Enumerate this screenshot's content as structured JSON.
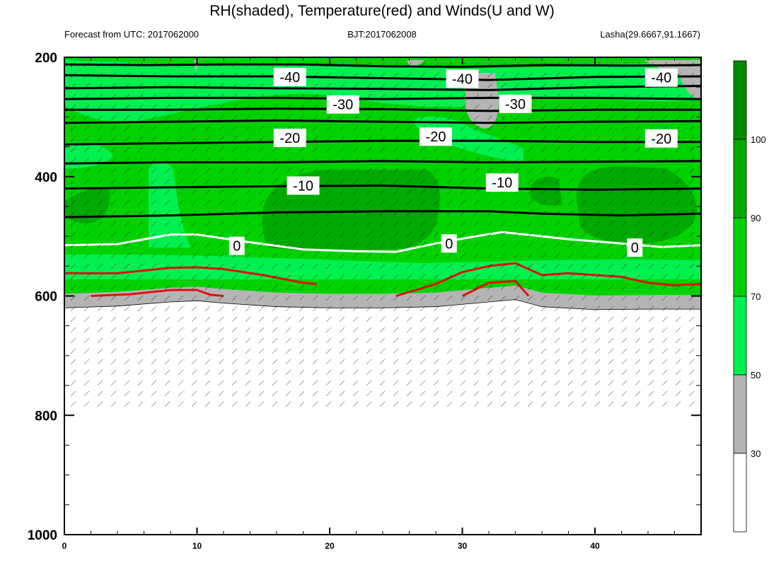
{
  "title": "RH(shaded), Temperature(red) and Winds(U and W)",
  "subtitle_left": "Forecast from UTC: 2017062000",
  "subtitle_center": "BJT:2017062008",
  "subtitle_right": "Lasha(29.6667,91.1667)",
  "chart_data": {
    "type": "contour",
    "xlim": [
      0,
      48
    ],
    "ylim": [
      1000,
      200
    ],
    "x_ticks": [
      "0",
      "10",
      "20",
      "30",
      "40"
    ],
    "y_ticks": [
      "200",
      "400",
      "600",
      "800",
      "1000"
    ],
    "colorbar": {
      "levels": [
        "30",
        "50",
        "70",
        "90",
        "100"
      ],
      "colors": [
        "#ffffff",
        "#b4b4b4",
        "#00f050",
        "#00d200",
        "#00aa00",
        "#008c00"
      ]
    },
    "surface_pressure": [
      {
        "x": 0,
        "y": 620
      },
      {
        "x": 4,
        "y": 617
      },
      {
        "x": 8,
        "y": 610
      },
      {
        "x": 10,
        "y": 608
      },
      {
        "x": 12,
        "y": 612
      },
      {
        "x": 16,
        "y": 618
      },
      {
        "x": 20,
        "y": 620
      },
      {
        "x": 24,
        "y": 620
      },
      {
        "x": 28,
        "y": 618
      },
      {
        "x": 31,
        "y": 612
      },
      {
        "x": 34,
        "y": 606
      },
      {
        "x": 36,
        "y": 618
      },
      {
        "x": 40,
        "y": 623
      },
      {
        "x": 44,
        "y": 622
      },
      {
        "x": 48,
        "y": 622
      }
    ],
    "temperature_isotherms": [
      {
        "label": "-40",
        "color": "#000000",
        "points": [
          {
            "x": 0,
            "y": 212
          },
          {
            "x": 6,
            "y": 213
          },
          {
            "x": 12,
            "y": 212
          },
          {
            "x": 18,
            "y": 212
          },
          {
            "x": 24,
            "y": 215
          },
          {
            "x": 30,
            "y": 216
          },
          {
            "x": 36,
            "y": 213
          },
          {
            "x": 42,
            "y": 214
          },
          {
            "x": 48,
            "y": 213
          }
        ]
      },
      {
        "label": "-40",
        "color": "#000000",
        "points": [
          {
            "x": 0,
            "y": 230
          },
          {
            "x": 8,
            "y": 232
          },
          {
            "x": 16,
            "y": 232
          },
          {
            "x": 24,
            "y": 235
          },
          {
            "x": 32,
            "y": 238
          },
          {
            "x": 40,
            "y": 233
          },
          {
            "x": 48,
            "y": 232
          }
        ]
      },
      {
        "label": "-40",
        "color": "#000000",
        "points": [
          {
            "x": 0,
            "y": 252
          },
          {
            "x": 8,
            "y": 250
          },
          {
            "x": 16,
            "y": 252
          },
          {
            "x": 24,
            "y": 253
          },
          {
            "x": 32,
            "y": 255
          },
          {
            "x": 40,
            "y": 250
          },
          {
            "x": 48,
            "y": 248
          }
        ]
      },
      {
        "label": "-30",
        "color": "#000000",
        "points": [
          {
            "x": 0,
            "y": 270
          },
          {
            "x": 8,
            "y": 268
          },
          {
            "x": 16,
            "y": 268
          },
          {
            "x": 24,
            "y": 270
          },
          {
            "x": 32,
            "y": 268
          },
          {
            "x": 40,
            "y": 268
          },
          {
            "x": 48,
            "y": 270
          }
        ]
      },
      {
        "label": "-30",
        "color": "#000000",
        "points": [
          {
            "x": 0,
            "y": 288
          },
          {
            "x": 8,
            "y": 288
          },
          {
            "x": 16,
            "y": 286
          },
          {
            "x": 24,
            "y": 287
          },
          {
            "x": 32,
            "y": 290
          },
          {
            "x": 40,
            "y": 288
          },
          {
            "x": 48,
            "y": 288
          }
        ]
      },
      {
        "label": "-20",
        "color": "#000000",
        "points": [
          {
            "x": 0,
            "y": 310
          },
          {
            "x": 8,
            "y": 308
          },
          {
            "x": 16,
            "y": 306
          },
          {
            "x": 24,
            "y": 308
          },
          {
            "x": 32,
            "y": 310
          },
          {
            "x": 40,
            "y": 308
          },
          {
            "x": 48,
            "y": 307
          }
        ]
      },
      {
        "label": "-20",
        "color": "#000000",
        "points": [
          {
            "x": 0,
            "y": 346
          },
          {
            "x": 8,
            "y": 344
          },
          {
            "x": 16,
            "y": 342
          },
          {
            "x": 24,
            "y": 340
          },
          {
            "x": 32,
            "y": 340
          },
          {
            "x": 40,
            "y": 342
          },
          {
            "x": 48,
            "y": 342
          }
        ]
      },
      {
        "label": "-10",
        "color": "#000000",
        "points": [
          {
            "x": 0,
            "y": 378
          },
          {
            "x": 8,
            "y": 376
          },
          {
            "x": 16,
            "y": 376
          },
          {
            "x": 24,
            "y": 374
          },
          {
            "x": 32,
            "y": 376
          },
          {
            "x": 40,
            "y": 375
          },
          {
            "x": 48,
            "y": 374
          }
        ]
      },
      {
        "label": "-10",
        "color": "#000000",
        "points": [
          {
            "x": 0,
            "y": 420
          },
          {
            "x": 8,
            "y": 418
          },
          {
            "x": 16,
            "y": 416
          },
          {
            "x": 24,
            "y": 415
          },
          {
            "x": 32,
            "y": 420
          },
          {
            "x": 40,
            "y": 422
          },
          {
            "x": 48,
            "y": 420
          }
        ]
      },
      {
        "label": "-10",
        "color": "#000000",
        "points": [
          {
            "x": 0,
            "y": 468
          },
          {
            "x": 8,
            "y": 465
          },
          {
            "x": 16,
            "y": 460
          },
          {
            "x": 24,
            "y": 458
          },
          {
            "x": 32,
            "y": 458
          },
          {
            "x": 36,
            "y": 462
          },
          {
            "x": 42,
            "y": 465
          },
          {
            "x": 48,
            "y": 462
          }
        ]
      },
      {
        "label": "0",
        "color": "#ffffff",
        "points": [
          {
            "x": 0,
            "y": 515
          },
          {
            "x": 4,
            "y": 513
          },
          {
            "x": 8,
            "y": 497
          },
          {
            "x": 10,
            "y": 497
          },
          {
            "x": 14,
            "y": 510
          },
          {
            "x": 18,
            "y": 522
          },
          {
            "x": 22,
            "y": 525
          },
          {
            "x": 25,
            "y": 526
          },
          {
            "x": 28,
            "y": 512
          },
          {
            "x": 31,
            "y": 500
          },
          {
            "x": 33,
            "y": 493
          },
          {
            "x": 36,
            "y": 500
          },
          {
            "x": 38,
            "y": 505
          },
          {
            "x": 42,
            "y": 512
          },
          {
            "x": 45,
            "y": 518
          },
          {
            "x": 48,
            "y": 515
          }
        ]
      },
      {
        "label": "",
        "color": "#e01010",
        "points": [
          {
            "x": 0,
            "y": 562
          },
          {
            "x": 4,
            "y": 562
          },
          {
            "x": 8,
            "y": 553
          },
          {
            "x": 10,
            "y": 552
          },
          {
            "x": 12,
            "y": 555
          },
          {
            "x": 15,
            "y": 565
          },
          {
            "x": 18,
            "y": 578
          },
          {
            "x": 19,
            "y": 580
          }
        ]
      },
      {
        "label": "",
        "color": "#e01010",
        "points": [
          {
            "x": 2,
            "y": 600
          },
          {
            "x": 5,
            "y": 597
          },
          {
            "x": 8,
            "y": 590
          },
          {
            "x": 10,
            "y": 590
          },
          {
            "x": 11,
            "y": 598
          },
          {
            "x": 12,
            "y": 600
          }
        ]
      },
      {
        "label": "",
        "color": "#e01010",
        "points": [
          {
            "x": 25,
            "y": 600
          },
          {
            "x": 28,
            "y": 580
          },
          {
            "x": 30,
            "y": 560
          },
          {
            "x": 32,
            "y": 550
          },
          {
            "x": 34,
            "y": 545
          },
          {
            "x": 36,
            "y": 565
          },
          {
            "x": 38,
            "y": 562
          },
          {
            "x": 42,
            "y": 568
          },
          {
            "x": 44,
            "y": 578
          },
          {
            "x": 46,
            "y": 582
          },
          {
            "x": 48,
            "y": 580
          }
        ]
      },
      {
        "label": "",
        "color": "#e01010",
        "points": [
          {
            "x": 30,
            "y": 600
          },
          {
            "x": 32,
            "y": 578
          },
          {
            "x": 34,
            "y": 575
          },
          {
            "x": 35,
            "y": 600
          }
        ]
      }
    ],
    "contour_labels": [
      {
        "text": "-40",
        "x": 17,
        "y": 233
      },
      {
        "text": "-40",
        "x": 30,
        "y": 236
      },
      {
        "text": "-40",
        "x": 45,
        "y": 234
      },
      {
        "text": "-30",
        "x": 21,
        "y": 279
      },
      {
        "text": "-30",
        "x": 34,
        "y": 278
      },
      {
        "text": "-20",
        "x": 17,
        "y": 335
      },
      {
        "text": "-20",
        "x": 28,
        "y": 333
      },
      {
        "text": "-20",
        "x": 45,
        "y": 336
      },
      {
        "text": "-10",
        "x": 18,
        "y": 415
      },
      {
        "text": "-10",
        "x": 33,
        "y": 410
      },
      {
        "text": "0",
        "x": 13,
        "y": 516
      },
      {
        "text": "0",
        "x": 29,
        "y": 512
      },
      {
        "text": "0",
        "x": 43,
        "y": 519
      }
    ]
  }
}
